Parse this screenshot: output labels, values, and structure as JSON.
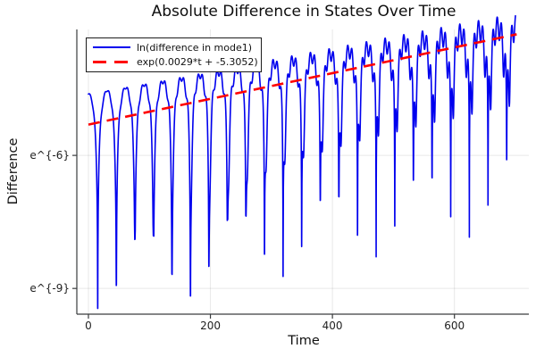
{
  "page": {
    "background": "#ffffff"
  },
  "chart_data": {
    "type": "line",
    "title": "Absolute Difference in States Over Time",
    "xlabel": "Time",
    "ylabel": "Difference",
    "xlim": [
      -19,
      722
    ],
    "ylim_ln": [
      -9.58,
      -3.16
    ],
    "grid": true,
    "legend_position": "top-left",
    "xticks": [
      {
        "v": 0,
        "label": "0"
      },
      {
        "v": 200,
        "label": "200"
      },
      {
        "v": 400,
        "label": "400"
      },
      {
        "v": 600,
        "label": "600"
      }
    ],
    "yticks": [
      {
        "v": -6,
        "label": "e^{-6}"
      },
      {
        "v": -9,
        "label": "e^{-9}"
      }
    ],
    "colors": {
      "background": "#ffffff",
      "grid": "rgba(0,0,0,0.09)",
      "axis": "#3a3c3e",
      "tick_text": "#1f1f1f",
      "series_blue": "#0000ee",
      "trend_red": "#ff0000"
    },
    "series": [
      {
        "name": "ln(difference in mode1)",
        "style": "solid",
        "width": 1.6,
        "color_key": "series_blue",
        "model": {
          "desc": "natural log of |state difference|: rising oscillation, cusped dips every ~30 t, dip depth beating and shallowing over time",
          "slope": 0.0029,
          "intercept": -5.3052,
          "peak_offset_start": 0.7,
          "peak_offset_end": 0.25,
          "period": 30.5,
          "first_zero_t": 15.2,
          "ripple_amp0": 0.013,
          "ripple_amp_growth": 0.00034,
          "ripple_freq": 0.923,
          "ripple_phase": 2.0,
          "depth_base": 3.5,
          "depth_beat_amp": 0.85,
          "depth_beat_period": 152,
          "min_ln": -9.45,
          "t_start": 0,
          "t_end": 700,
          "sample_dt": 0.4
        }
      },
      {
        "name": "exp(0.0029*t + -5.3052)",
        "style": "dashed",
        "width": 2.6,
        "color_key": "trend_red",
        "dash": [
          13,
          8
        ],
        "model": {
          "slope": 0.0029,
          "intercept": -5.3052,
          "t_start": 0,
          "t_end": 702
        }
      }
    ]
  }
}
